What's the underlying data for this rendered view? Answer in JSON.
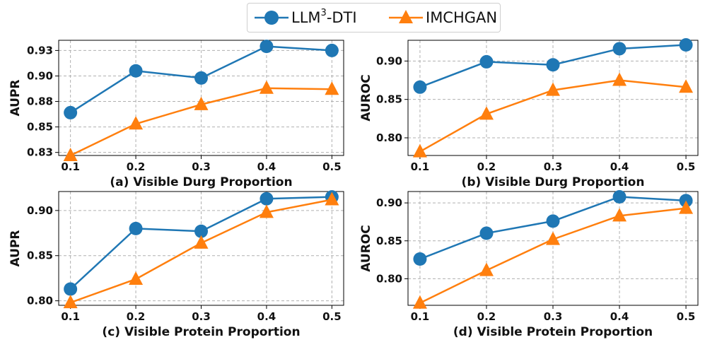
{
  "legend": {
    "series_a_prefix": "LLM",
    "series_a_sup": "3",
    "series_a_suffix": "-DTI",
    "series_b": "IMCHGAN"
  },
  "colors": {
    "llm": "#1f77b4",
    "imc": "#ff7f0e"
  },
  "chart_data": [
    {
      "type": "line",
      "panel": "a",
      "xlabel": "(a) Visible Durg Proportion",
      "ylabel": "AUPR",
      "x": [
        0.1,
        0.2,
        0.3,
        0.4,
        0.5
      ],
      "x_tick_labels": [
        "0.1",
        "0.2",
        "0.3",
        "0.4",
        "0.5"
      ],
      "ylim": [
        0.822,
        0.935
      ],
      "y_ticks": [
        0.825,
        0.85,
        0.875,
        0.9,
        0.925
      ],
      "y_tick_labels": [
        "0.83",
        "0.85",
        "0.88",
        "0.90",
        "0.93"
      ],
      "series": [
        {
          "name": "LLM3-DTI",
          "values": [
            0.864,
            0.905,
            0.898,
            0.929,
            0.925
          ]
        },
        {
          "name": "IMCHGAN",
          "values": [
            0.822,
            0.853,
            0.872,
            0.888,
            0.887
          ]
        }
      ]
    },
    {
      "type": "line",
      "panel": "b",
      "xlabel": "(b) Visible Durg Proportion",
      "ylabel": "AUROC",
      "x": [
        0.1,
        0.2,
        0.3,
        0.4,
        0.5
      ],
      "x_tick_labels": [
        "0.1",
        "0.2",
        "0.3",
        "0.4",
        "0.5"
      ],
      "ylim": [
        0.777,
        0.927
      ],
      "y_ticks": [
        0.8,
        0.85,
        0.9
      ],
      "y_tick_labels": [
        "0.80",
        "0.85",
        "0.90"
      ],
      "series": [
        {
          "name": "LLM3-DTI",
          "values": [
            0.866,
            0.899,
            0.895,
            0.916,
            0.921
          ]
        },
        {
          "name": "IMCHGAN",
          "values": [
            0.782,
            0.831,
            0.862,
            0.875,
            0.866
          ]
        }
      ]
    },
    {
      "type": "line",
      "panel": "c",
      "xlabel": "(c) Visible Protein Proportion",
      "ylabel": "AUPR",
      "x": [
        0.1,
        0.2,
        0.3,
        0.4,
        0.5
      ],
      "x_tick_labels": [
        "0.1",
        "0.2",
        "0.3",
        "0.4",
        "0.5"
      ],
      "ylim": [
        0.795,
        0.921
      ],
      "y_ticks": [
        0.8,
        0.85,
        0.9
      ],
      "y_tick_labels": [
        "0.80",
        "0.85",
        "0.90"
      ],
      "series": [
        {
          "name": "LLM3-DTI",
          "values": [
            0.813,
            0.88,
            0.877,
            0.913,
            0.915
          ]
        },
        {
          "name": "IMCHGAN",
          "values": [
            0.798,
            0.824,
            0.864,
            0.898,
            0.912
          ]
        }
      ]
    },
    {
      "type": "line",
      "panel": "d",
      "xlabel": "(d) Visible Protein Proportion",
      "ylabel": "AUROC",
      "x": [
        0.1,
        0.2,
        0.3,
        0.4,
        0.5
      ],
      "x_tick_labels": [
        "0.1",
        "0.2",
        "0.3",
        "0.4",
        "0.5"
      ],
      "ylim": [
        0.765,
        0.915
      ],
      "y_ticks": [
        0.8,
        0.85,
        0.9
      ],
      "y_tick_labels": [
        "0.80",
        "0.85",
        "0.90"
      ],
      "series": [
        {
          "name": "LLM3-DTI",
          "values": [
            0.826,
            0.86,
            0.876,
            0.908,
            0.903
          ]
        },
        {
          "name": "IMCHGAN",
          "values": [
            0.768,
            0.811,
            0.852,
            0.883,
            0.893
          ]
        }
      ]
    }
  ]
}
